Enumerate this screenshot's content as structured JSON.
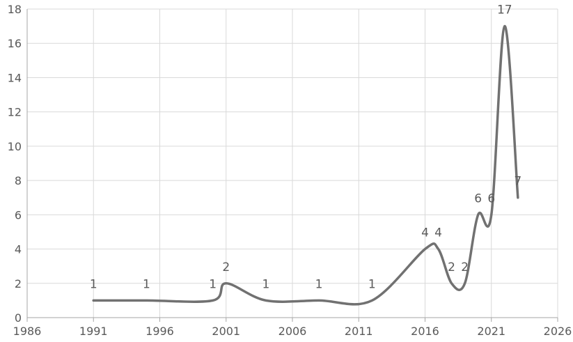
{
  "chart_data": {
    "type": "line",
    "title": "",
    "xlabel": "",
    "ylabel": "",
    "x": [
      1991,
      1995,
      2000,
      2001,
      2004,
      2008,
      2012,
      2016,
      2017,
      2018,
      2019,
      2020,
      2021,
      2022,
      2023
    ],
    "series": [
      {
        "values": [
          1,
          1,
          1,
          2,
          1,
          1,
          1,
          4,
          4,
          2,
          2,
          6,
          6,
          17,
          7
        ]
      }
    ],
    "xlim": [
      1986,
      2026
    ],
    "ylim": [
      0,
      18
    ],
    "x_ticks": [
      "1986",
      "1991",
      "1996",
      "2001",
      "2006",
      "2011",
      "2016",
      "2021",
      "2026"
    ],
    "y_ticks": [
      "0",
      "2",
      "4",
      "6",
      "8",
      "10",
      "12",
      "14",
      "16",
      "18"
    ],
    "data_labels": [
      "1",
      "1",
      "1",
      "2",
      "1",
      "1",
      "1",
      "4",
      "4",
      "2",
      "2",
      "6",
      "6",
      "17",
      "7"
    ],
    "grid": true,
    "smooth": true,
    "line_color": "#717171",
    "grid_color": "#d9d9d9",
    "axis_color": "#a6a6a6"
  }
}
